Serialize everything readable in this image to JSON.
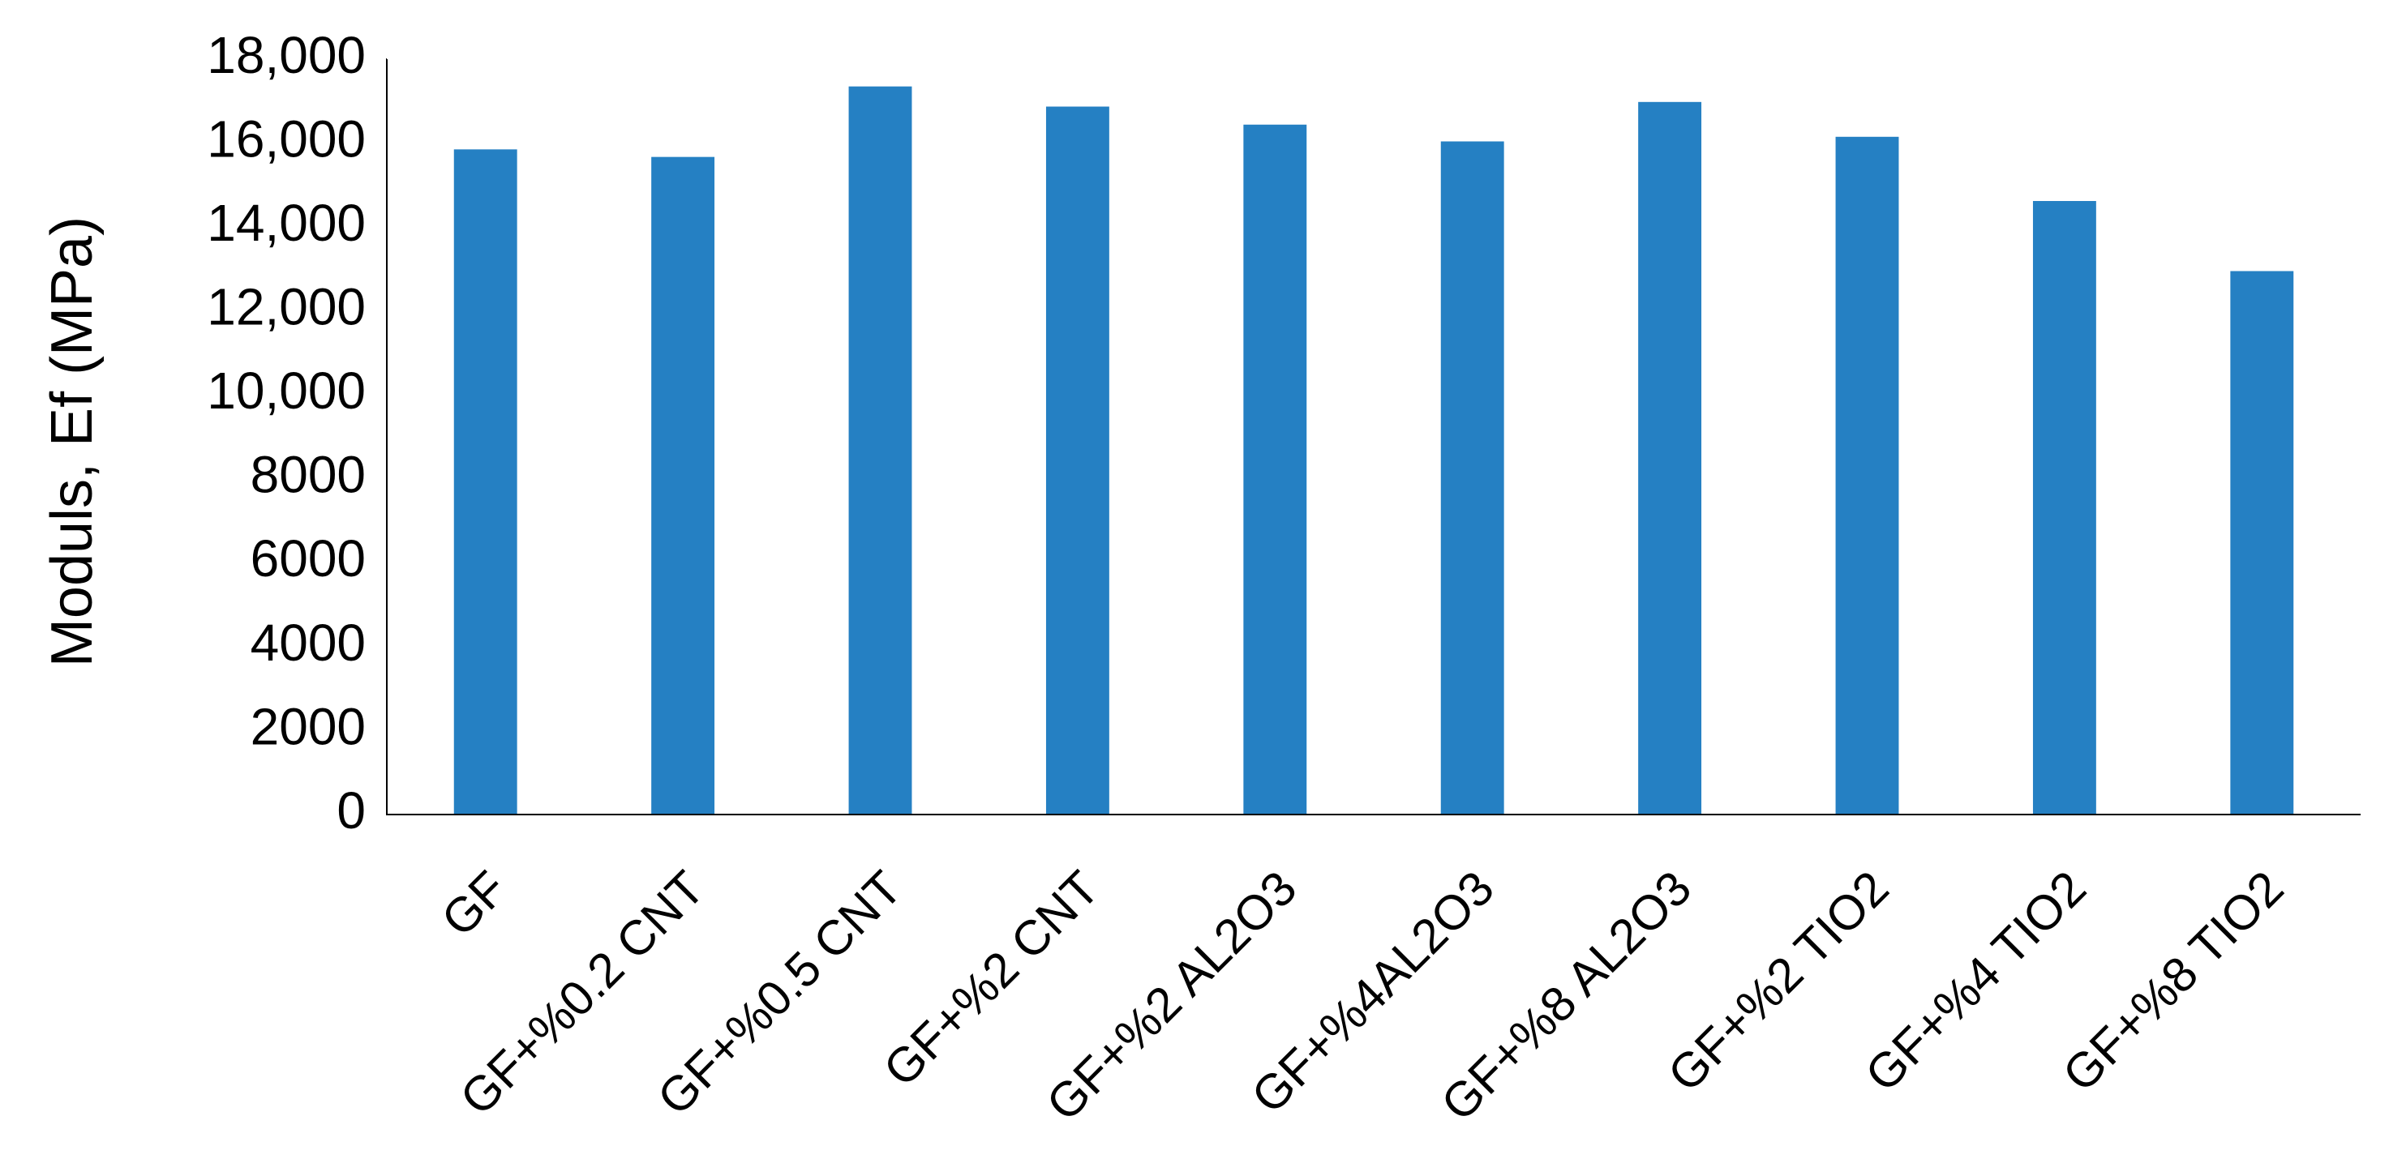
{
  "chart_data": {
    "type": "bar",
    "ylabel": "Moduls, Ef (MPa)",
    "categories": [
      "GF",
      "GF+%0.2 CNT",
      "GF+%0.5 CNT",
      "GF+%2 CNT",
      "GF+%2 AL2O3",
      "GF+%4AL2O3",
      "GF+%8 AL2O3",
      "GF+%2 TIO2",
      "GF+%4 TIO2",
      "GF+%8 TIO2"
    ],
    "values": [
      15850,
      15670,
      17350,
      16870,
      16440,
      16040,
      16980,
      16150,
      14620,
      12950
    ],
    "color": "#2580c3",
    "ylim": [
      0,
      18000
    ],
    "yticks": [
      0,
      2000,
      4000,
      6000,
      8000,
      {
        "value": 10000,
        "label": "10,000"
      },
      {
        "value": 12000,
        "label": "12,000"
      },
      {
        "value": 14000,
        "label": "14,000"
      },
      {
        "value": 16000,
        "label": "16,000"
      },
      {
        "value": 18000,
        "label": "18,000"
      }
    ]
  }
}
